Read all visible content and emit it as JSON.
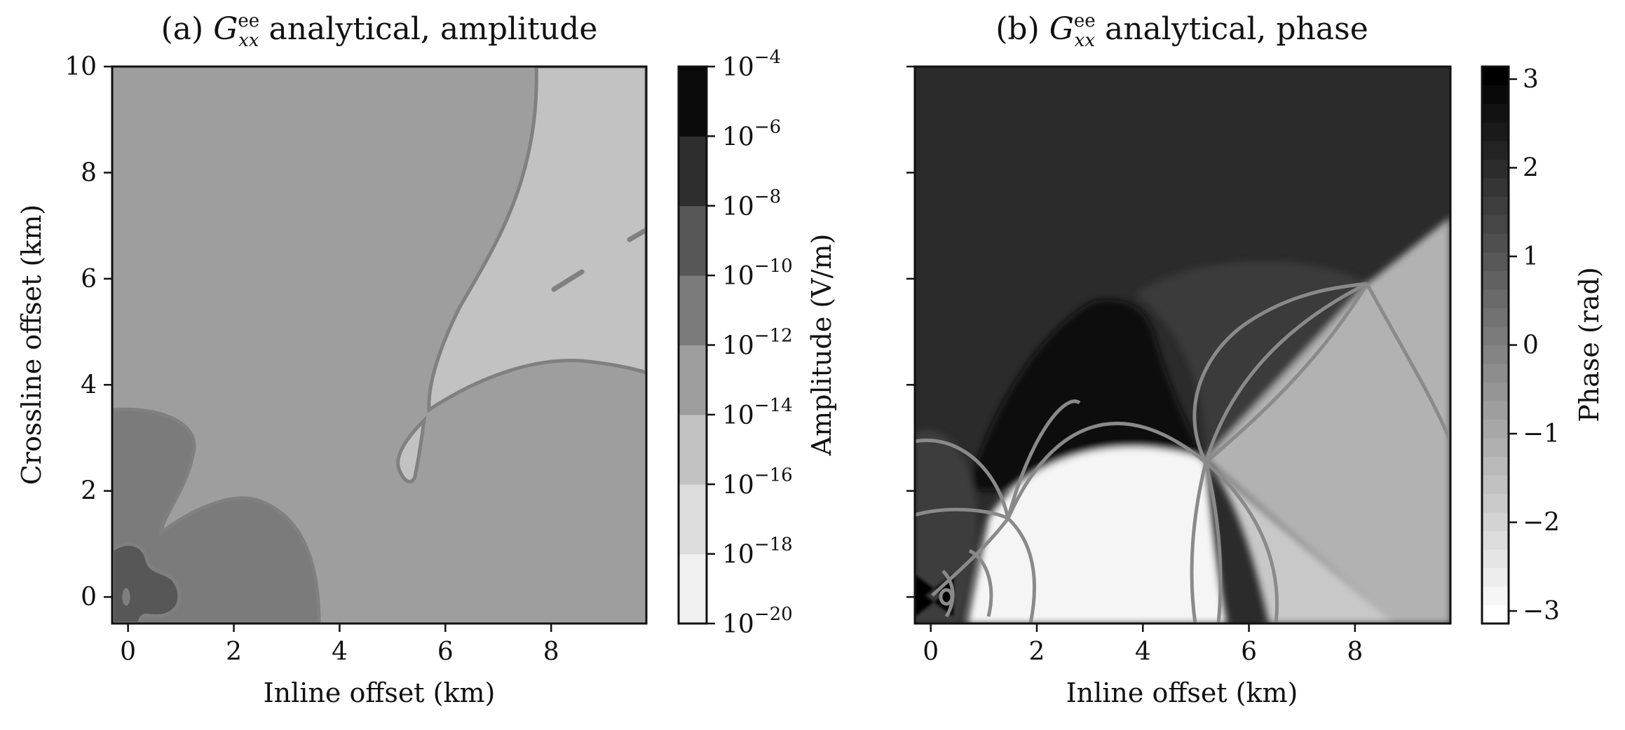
{
  "chart_data": [
    {
      "type": "heatmap",
      "title_prefix": "(a) ",
      "title_symbol": "G",
      "title_sup": "ee",
      "title_sub": "xx",
      "title_suffix": " analytical, amplitude",
      "xlabel": "Inline offset (km)",
      "ylabel": "Crossline offset (km)",
      "xlim": [
        -0.3,
        9.8
      ],
      "ylim": [
        -0.5,
        10
      ],
      "xticks": [
        "0",
        "2",
        "4",
        "6",
        "8"
      ],
      "xtick_values": [
        0,
        2,
        4,
        6,
        8
      ],
      "yticks": [
        "0",
        "2",
        "4",
        "6",
        "8",
        "10"
      ],
      "ytick_values": [
        0,
        2,
        4,
        6,
        8,
        10
      ],
      "colorbar": {
        "label": "Amplitude (V/m)",
        "scale": "log",
        "range": [
          1e-20,
          0.0001
        ],
        "tick_base": "10",
        "tick_exponents": [
          "−20",
          "−18",
          "−16",
          "−14",
          "−12",
          "−10",
          "−8",
          "−6",
          "−4"
        ],
        "level_colors": [
          "#f0f0f0",
          "#dcdcdc",
          "#c2c2c2",
          "#9e9e9e",
          "#7b7b7b",
          "#575757",
          "#2e2e2e",
          "#0a0a0a"
        ]
      },
      "regions_value_range": [
        {
          "region": "near source core",
          "level_index": 5
        },
        {
          "region": "near-field lobes",
          "level_index": 4
        },
        {
          "region": "background",
          "level_index": 3
        },
        {
          "region": "upper-right",
          "level_index": 2
        }
      ]
    },
    {
      "type": "heatmap",
      "title_prefix": "(b) ",
      "title_symbol": "G",
      "title_sup": "ee",
      "title_sub": "xx",
      "title_suffix": " analytical, phase",
      "xlabel": "Inline offset (km)",
      "xlim": [
        -0.3,
        9.8
      ],
      "ylim": [
        -0.5,
        10
      ],
      "xticks": [
        "0",
        "2",
        "4",
        "6",
        "8"
      ],
      "xtick_values": [
        0,
        2,
        4,
        6,
        8
      ],
      "colorbar": {
        "label": "Phase (rad)",
        "scale": "linear",
        "range": [
          -3.1416,
          3.1416
        ],
        "ticks": [
          "−3",
          "−2",
          "−1",
          "0",
          "1",
          "2",
          "3"
        ],
        "tick_values": [
          -3,
          -2,
          -1,
          0,
          1,
          2,
          3
        ],
        "levels": 30
      }
    }
  ]
}
